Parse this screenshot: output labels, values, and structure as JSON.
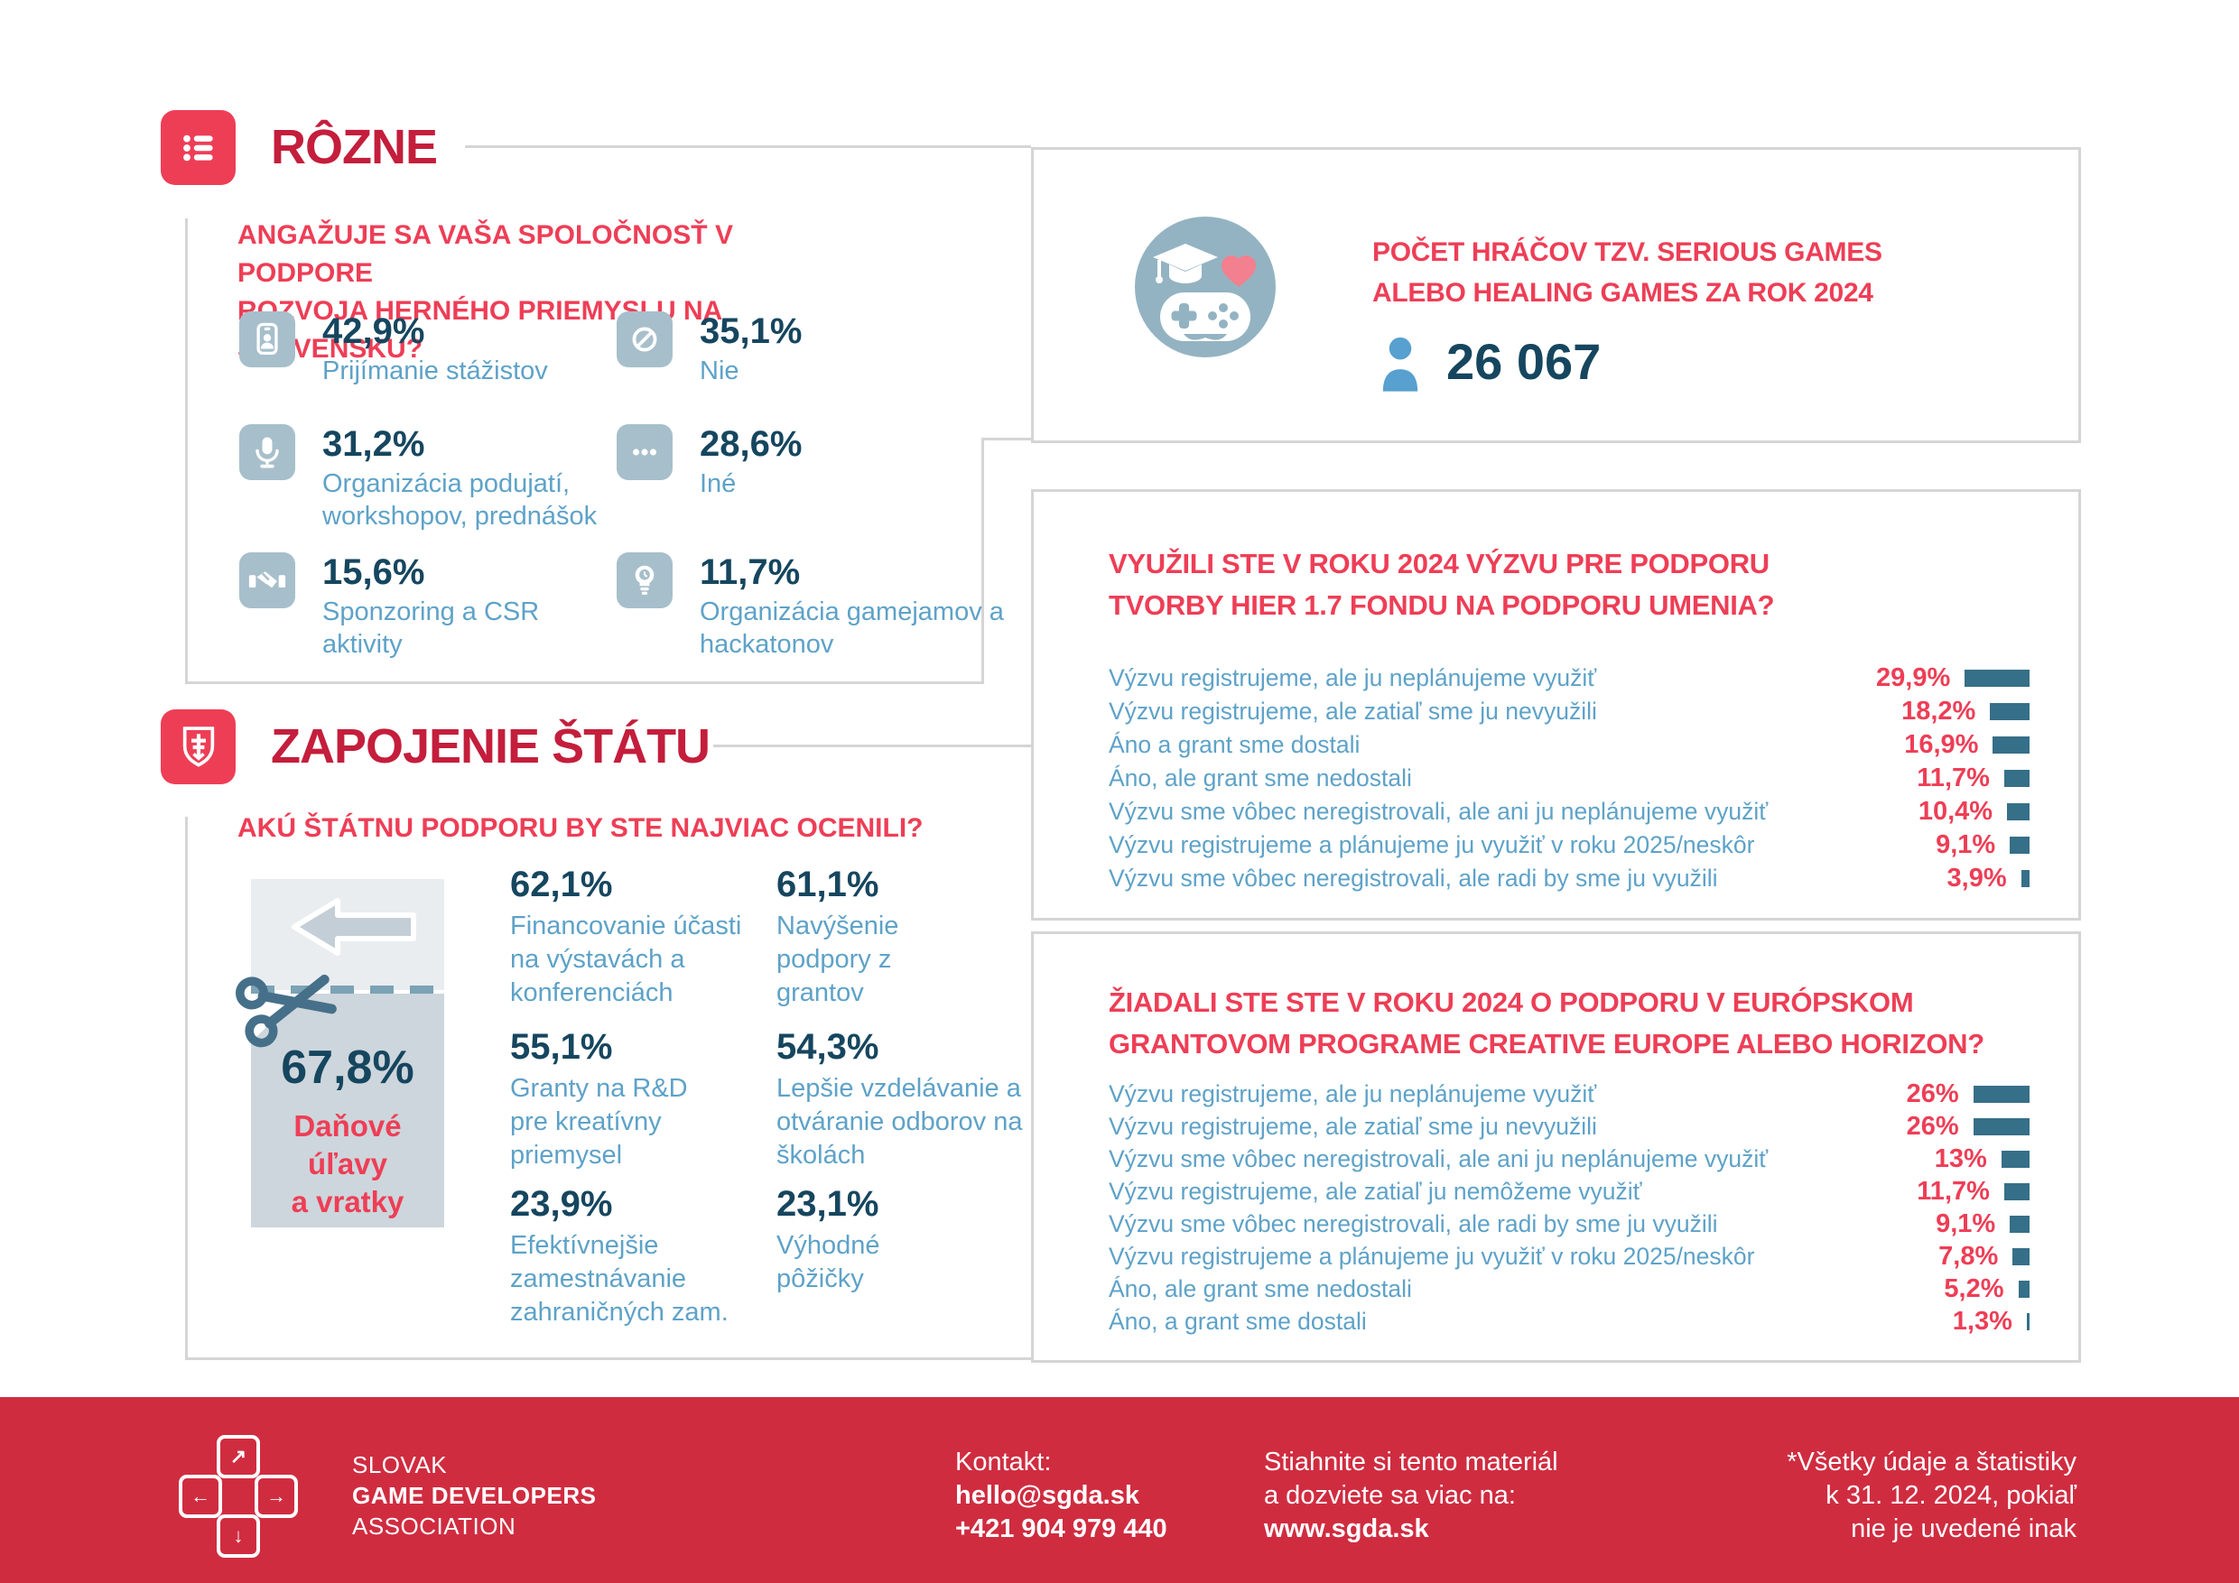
{
  "colors": {
    "crimson_title": "#c41e3c",
    "red_accent": "#ee3e56",
    "footer_red": "#d02c40",
    "navy_number": "#16465f",
    "label_blue": "#5ea2c8",
    "icon_tile": "#a7bfcb",
    "bar_teal": "#366f88",
    "border_gray": "#d5d5d5"
  },
  "sections": {
    "rozne_title": "RÔZNE",
    "statu_title": "ZAPOJENIE ŠTÁTU"
  },
  "chart_data": [
    {
      "id": "company-engagement",
      "type": "table",
      "question_lines": [
        "ANGAŽUJE SA VAŠA SPOLOČNOSŤ V PODPORE",
        "ROZVOJA HERNÉHO PRIEMYSLU NA SLOVENSKU?"
      ],
      "items": [
        {
          "icon": "id-badge",
          "value_label": "42,9%",
          "value": 42.9,
          "label": "Prijímanie stážistov"
        },
        {
          "icon": "prohibited",
          "value_label": "35,1%",
          "value": 35.1,
          "label": "Nie"
        },
        {
          "icon": "microphone",
          "value_label": "31,2%",
          "value": 31.2,
          "label": "Organizácia podujatí, workshopov, prednášok"
        },
        {
          "icon": "ellipsis",
          "value_label": "28,6%",
          "value": 28.6,
          "label": "Iné"
        },
        {
          "icon": "handshake",
          "value_label": "15,6%",
          "value": 15.6,
          "label": "Sponzoring a CSR aktivity"
        },
        {
          "icon": "lightbulb",
          "value_label": "11,7%",
          "value": 11.7,
          "label": "Organizácia gamejamov a hackatonov"
        }
      ]
    },
    {
      "id": "serious-games-players",
      "type": "value",
      "title_lines": [
        "POČET HRÁČOV TZV. SERIOUS GAMES",
        "ALEBO HEALING GAMES ZA ROK 2024"
      ],
      "value": 26067,
      "value_label": "26 067"
    },
    {
      "id": "state-support-wanted",
      "type": "table",
      "question": "AKÚ ŠTÁTNU PODPORU BY STE NAJVIAC OCENILI?",
      "tax": {
        "value_label": "67,8%",
        "value": 67.8,
        "label_lines": [
          "Daňové",
          "úľavy",
          "a vratky"
        ]
      },
      "items": [
        {
          "value_label": "62,1%",
          "value": 62.1,
          "label": "Financovanie účasti na výstavách a konferenciách"
        },
        {
          "value_label": "61,1%",
          "value": 61.1,
          "label": "Navýšenie podpory z grantov"
        },
        {
          "value_label": "55,1%",
          "value": 55.1,
          "label": "Granty na R&D pre kreatívny priemysel"
        },
        {
          "value_label": "54,3%",
          "value": 54.3,
          "label": "Lepšie vzdelávanie a otváranie odborov na školách"
        },
        {
          "value_label": "23,9%",
          "value": 23.9,
          "label": "Efektívnejšie zamestnávanie zahraničných zam."
        },
        {
          "value_label": "23,1%",
          "value": 23.1,
          "label": "Výhodné pôžičky"
        }
      ]
    },
    {
      "id": "fpu-call-2024",
      "type": "bar",
      "title_lines": [
        "VYUŽILI STE V ROKU 2024 VÝZVU PRE PODPORU",
        "TVORBY HIER 1.7 FONDU NA PODPORU UMENIA?"
      ],
      "categories": [
        "Výzvu registrujeme, ale ju neplánujeme využiť",
        "Výzvu registrujeme, ale zatiaľ sme ju nevyužili",
        "Áno a grant sme dostali",
        "Áno, ale grant sme nedostali",
        "Výzvu sme vôbec neregistrovali, ale ani ju neplánujeme využiť",
        "Výzvu registrujeme a plánujeme ju využiť v roku 2025/neskôr",
        "Výzvu sme vôbec neregistrovali, ale radi by sme ju využili"
      ],
      "values": [
        29.9,
        18.2,
        16.9,
        11.7,
        10.4,
        9.1,
        3.9
      ],
      "value_labels": [
        "29,9%",
        "18,2%",
        "16,9%",
        "11,7%",
        "10,4%",
        "9,1%",
        "3,9%"
      ],
      "xlim": [
        0,
        30
      ],
      "orientation": "horizontal",
      "grid": false,
      "legend": "none"
    },
    {
      "id": "eu-grants-2024",
      "type": "bar",
      "title_lines": [
        "ŽIADALI STE STE V ROKU 2024 O PODPORU V EURÓPSKOM",
        "GRANTOVOM PROGRAME CREATIVE EUROPE ALEBO HORIZON?"
      ],
      "categories": [
        "Výzvu registrujeme, ale ju neplánujeme využiť",
        "Výzvu registrujeme, ale zatiaľ sme ju nevyužili",
        "Výzvu sme vôbec neregistrovali, ale ani ju neplánujeme využiť",
        "Výzvu registrujeme, ale zatiaľ ju nemôžeme využiť",
        "Výzvu sme vôbec neregistrovali, ale radi by sme ju využili",
        "Výzvu registrujeme a plánujeme ju využiť v roku 2025/neskôr",
        "Áno, ale grant sme nedostali",
        "Áno, a grant sme dostali"
      ],
      "values": [
        26,
        26,
        13,
        11.7,
        9.1,
        7.8,
        5.2,
        1.3
      ],
      "value_labels": [
        "26%",
        "26%",
        "13%",
        "11,7%",
        "9,1%",
        "7,8%",
        "5,2%",
        "1,3%"
      ],
      "xlim": [
        0,
        30
      ],
      "orientation": "horizontal",
      "grid": false,
      "legend": "none"
    }
  ],
  "footer": {
    "org_lines": [
      "SLOVAK",
      "GAME DEVELOPERS",
      "ASSOCIATION"
    ],
    "kontakt_label": "Kontakt:",
    "email": "hello@sgda.sk",
    "phone": "+421 904 979 440",
    "download_lines": [
      "Stiahnite si tento materiál",
      "a dozviete sa viac na:"
    ],
    "url": "www.sgda.sk",
    "note_lines": [
      "*Všetky údaje a štatistiky",
      "k 31. 12. 2024, pokiaľ",
      "nie je uvedené inak"
    ]
  }
}
